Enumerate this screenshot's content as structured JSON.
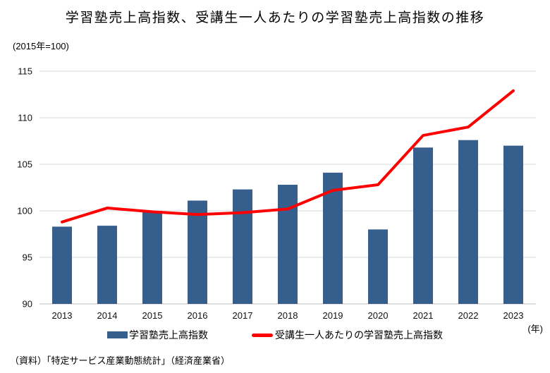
{
  "page": {
    "source": "（資料）「特定サービス産業動態統計」（経済産業省）"
  },
  "colors": {
    "bar": "#375F8E",
    "line": "#FF0000",
    "gridline": "#D9D9D9",
    "axisline": "#BFBFBF",
    "text": "#111111"
  },
  "chart_data": {
    "type": "bar",
    "title": "学習塾売上高指数、受講生一人あたりの学習塾売上高指数の推移",
    "y_note": "(2015年=100)",
    "x_unit": "(年)",
    "xlabel": "",
    "ylabel": "",
    "categories": [
      "2013",
      "2014",
      "2015",
      "2016",
      "2017",
      "2018",
      "2019",
      "2020",
      "2021",
      "2022",
      "2023"
    ],
    "series": [
      {
        "name": "学習塾売上高指数",
        "type": "bar",
        "color": "#375F8E",
        "values": [
          98.3,
          98.4,
          100.0,
          101.1,
          102.3,
          102.8,
          104.1,
          98.0,
          106.8,
          107.6,
          107.0
        ]
      },
      {
        "name": "受講生一人あたりの学習塾売上高指数",
        "type": "line",
        "color": "#FF0000",
        "values": [
          98.8,
          100.3,
          99.9,
          99.6,
          99.8,
          100.2,
          102.2,
          102.8,
          108.1,
          109.0,
          112.9
        ]
      }
    ],
    "ylim": [
      90,
      115
    ],
    "yticks": [
      90,
      95,
      100,
      105,
      110,
      115
    ],
    "grid": true,
    "legend_position": "bottom"
  }
}
